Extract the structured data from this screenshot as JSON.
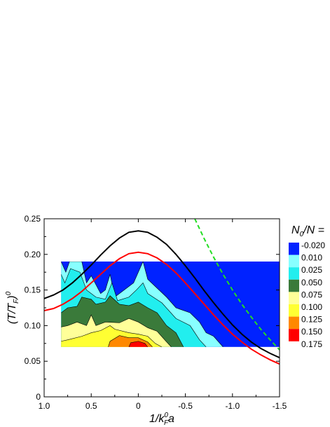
{
  "chart_data": {
    "type": "heatmap",
    "xlabel": "1/k",
    "xlabel_sup": "0",
    "xlabel_sub": "F",
    "xlabel_end": "a",
    "ylabel": "(T/T",
    "ylabel_sub": "F",
    "ylabel_close": ")",
    "ylabel_sup": "0",
    "xlim": [
      1.0,
      -1.5
    ],
    "ylim": [
      0,
      0.25
    ],
    "x_reversed": true,
    "x_ticks": [
      1.0,
      0.5,
      0,
      -0.5,
      -1.0,
      -1.5
    ],
    "x_tick_labels": [
      "1.0",
      "0.5",
      "0",
      "-0.5",
      "-1.0",
      "-1.5"
    ],
    "y_ticks": [
      0,
      0.05,
      0.1,
      0.15,
      0.2,
      0.25
    ],
    "y_tick_labels": [
      "0",
      "0.05",
      "0.10",
      "0.15",
      "0.20",
      "0.25"
    ],
    "data_region": {
      "x": [
        0.82,
        -1.5
      ],
      "y": [
        0.07,
        0.19
      ]
    },
    "legend": {
      "title_main": "N",
      "title_sub": "0",
      "title_end": "/N =",
      "placement": "right",
      "levels": [
        {
          "label": "-0.020",
          "color": "#0022ff"
        },
        {
          "label": "0.010",
          "color": "#88ffff"
        },
        {
          "label": "0.025",
          "color": "#22eeee"
        },
        {
          "label": "0.050",
          "color": "#3a7a3a"
        },
        {
          "label": "0.075",
          "color": "#ffff99"
        },
        {
          "label": "0.100",
          "color": "#ffff33"
        },
        {
          "label": "0.125",
          "color": "#ff8800"
        },
        {
          "label": "0.150",
          "color": "#ff0000"
        },
        {
          "label": "0.175",
          "color": ""
        }
      ]
    },
    "contour_bands": [
      {
        "level": "0.010",
        "color": "#88ffff",
        "upper": [
          [
            0.82,
            0.19
          ],
          [
            0.77,
            0.175
          ],
          [
            0.73,
            0.19
          ],
          [
            0.6,
            0.19
          ],
          [
            0.55,
            0.16
          ],
          [
            0.5,
            0.17
          ],
          [
            0.4,
            0.145
          ],
          [
            0.35,
            0.15
          ],
          [
            0.3,
            0.172
          ],
          [
            0.25,
            0.14
          ],
          [
            0.1,
            0.155
          ],
          [
            0.05,
            0.16
          ],
          [
            -0.05,
            0.19
          ],
          [
            -0.1,
            0.165
          ],
          [
            -0.3,
            0.14
          ],
          [
            -0.4,
            0.125
          ],
          [
            -0.55,
            0.118
          ],
          [
            -0.65,
            0.105
          ],
          [
            -0.72,
            0.09
          ],
          [
            -0.8,
            0.085
          ],
          [
            -0.9,
            0.07
          ]
        ]
      },
      {
        "level": "0.025",
        "color": "#22eeee",
        "upper": [
          [
            0.82,
            0.172
          ],
          [
            0.78,
            0.16
          ],
          [
            0.72,
            0.18
          ],
          [
            0.62,
            0.175
          ],
          [
            0.55,
            0.15
          ],
          [
            0.45,
            0.14
          ],
          [
            0.35,
            0.137
          ],
          [
            0.28,
            0.16
          ],
          [
            0.22,
            0.135
          ],
          [
            0.1,
            0.14
          ],
          [
            0.02,
            0.15
          ],
          [
            -0.05,
            0.16
          ],
          [
            -0.1,
            0.145
          ],
          [
            -0.25,
            0.132
          ],
          [
            -0.4,
            0.11
          ],
          [
            -0.55,
            0.1
          ],
          [
            -0.65,
            0.08
          ],
          [
            -0.72,
            0.07
          ]
        ]
      },
      {
        "level": "0.050",
        "color": "#3a7a3a",
        "upper": [
          [
            0.82,
            0.118
          ],
          [
            0.75,
            0.125
          ],
          [
            0.65,
            0.127
          ],
          [
            0.6,
            0.14
          ],
          [
            0.5,
            0.137
          ],
          [
            0.45,
            0.13
          ],
          [
            0.35,
            0.133
          ],
          [
            0.3,
            0.142
          ],
          [
            0.2,
            0.13
          ],
          [
            0.1,
            0.128
          ],
          [
            0.0,
            0.133
          ],
          [
            -0.1,
            0.125
          ],
          [
            -0.2,
            0.118
          ],
          [
            -0.3,
            0.1
          ],
          [
            -0.4,
            0.09
          ],
          [
            -0.48,
            0.07
          ]
        ]
      },
      {
        "level": "0.075",
        "color": "#ffff99",
        "upper": [
          [
            0.82,
            0.098
          ],
          [
            0.75,
            0.1
          ],
          [
            0.65,
            0.105
          ],
          [
            0.55,
            0.1
          ],
          [
            0.5,
            0.115
          ],
          [
            0.45,
            0.1
          ],
          [
            0.35,
            0.105
          ],
          [
            0.2,
            0.104
          ],
          [
            0.1,
            0.11
          ],
          [
            0.0,
            0.105
          ],
          [
            -0.1,
            0.097
          ],
          [
            -0.2,
            0.092
          ],
          [
            -0.28,
            0.08
          ],
          [
            -0.35,
            0.07
          ]
        ]
      },
      {
        "level": "0.100",
        "color": "#ffff33",
        "upper": [
          [
            0.82,
            0.078
          ],
          [
            0.75,
            0.08
          ],
          [
            0.6,
            0.085
          ],
          [
            0.5,
            0.09
          ],
          [
            0.4,
            0.093
          ],
          [
            0.3,
            0.1
          ],
          [
            0.25,
            0.095
          ],
          [
            0.1,
            0.09
          ],
          [
            0.0,
            0.088
          ],
          [
            -0.1,
            0.085
          ],
          [
            -0.18,
            0.075
          ],
          [
            -0.25,
            0.07
          ]
        ]
      },
      {
        "level": "0.125",
        "color": "#ff8800",
        "upper": [
          [
            0.32,
            0.07
          ],
          [
            0.3,
            0.078
          ],
          [
            0.2,
            0.086
          ],
          [
            0.1,
            0.083
          ],
          [
            0.0,
            0.083
          ],
          [
            -0.1,
            0.077
          ],
          [
            -0.15,
            0.07
          ]
        ]
      },
      {
        "level": "0.150",
        "color": "#ff0000",
        "upper": [
          [
            0.1,
            0.07
          ],
          [
            0.08,
            0.076
          ],
          [
            0.0,
            0.078
          ],
          [
            -0.07,
            0.075
          ],
          [
            -0.1,
            0.07
          ]
        ]
      }
    ],
    "curves": [
      {
        "color": "#000000",
        "dashed": false,
        "x": [
          1.0,
          0.9,
          0.8,
          0.7,
          0.6,
          0.5,
          0.4,
          0.3,
          0.2,
          0.1,
          0.0,
          -0.1,
          -0.2,
          -0.3,
          -0.4,
          -0.5,
          -0.6,
          -0.7,
          -0.8,
          -0.9,
          -1.0,
          -1.1,
          -1.2,
          -1.3,
          -1.4,
          -1.5
        ],
        "y": [
          0.138,
          0.143,
          0.15,
          0.16,
          0.172,
          0.185,
          0.199,
          0.212,
          0.223,
          0.231,
          0.233,
          0.231,
          0.224,
          0.214,
          0.2,
          0.184,
          0.167,
          0.149,
          0.132,
          0.116,
          0.101,
          0.088,
          0.077,
          0.068,
          0.061,
          0.055
        ]
      },
      {
        "color": "#ff0000",
        "dashed": false,
        "x": [
          1.0,
          0.9,
          0.8,
          0.7,
          0.6,
          0.5,
          0.4,
          0.3,
          0.2,
          0.1,
          0.0,
          -0.1,
          -0.2,
          -0.3,
          -0.4,
          -0.5,
          -0.6,
          -0.7,
          -0.8,
          -0.9,
          -1.0,
          -1.1,
          -1.2,
          -1.3,
          -1.4,
          -1.5
        ],
        "y": [
          0.121,
          0.124,
          0.13,
          0.138,
          0.148,
          0.16,
          0.172,
          0.184,
          0.194,
          0.201,
          0.203,
          0.201,
          0.195,
          0.186,
          0.174,
          0.16,
          0.145,
          0.13,
          0.115,
          0.101,
          0.088,
          0.077,
          0.067,
          0.059,
          0.052,
          0.046
        ]
      },
      {
        "color": "#22dd22",
        "dashed": true,
        "x": [
          -0.6,
          -0.7,
          -0.8,
          -0.9,
          -1.0,
          -1.1,
          -1.2,
          -1.3,
          -1.4,
          -1.5
        ],
        "y": [
          0.25,
          0.222,
          0.196,
          0.172,
          0.15,
          0.13,
          0.112,
          0.095,
          0.08,
          0.066
        ]
      }
    ],
    "contour_line_color": "#000000"
  }
}
